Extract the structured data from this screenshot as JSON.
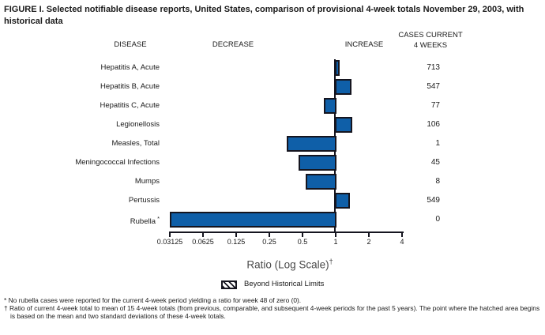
{
  "title": "FIGURE I. Selected notifiable disease reports, United States, comparison of provisional 4-week totals November 29, 2003, with historical data",
  "columns": {
    "disease": "DISEASE",
    "decrease": "DECREASE",
    "increase": "INCREASE",
    "cases_line1": "CASES CURRENT",
    "cases_line2": "4 WEEKS"
  },
  "chart_data": {
    "type": "bar",
    "orientation": "horizontal",
    "xscale": "log2",
    "xlabel": "Ratio (Log Scale)",
    "xlabel_superscript": "†",
    "xlim": [
      0.03125,
      4
    ],
    "baseline_ratio": 1,
    "axis_tick_labels": [
      "0.03125",
      "0.0625",
      "0.125",
      "0.25",
      "0.5",
      "1",
      "2",
      "4"
    ],
    "bar_color": "#0f5fa8",
    "bar_border_color": "#15151f",
    "rows": [
      {
        "disease": "Hepatitis A, Acute",
        "ratio": 1.08,
        "cases": "713",
        "beyond_historical_limits": false
      },
      {
        "disease": "Hepatitis B, Acute",
        "ratio": 1.39,
        "cases": "547",
        "beyond_historical_limits": false
      },
      {
        "disease": "Hepatitis C, Acute",
        "ratio": 0.78,
        "cases": "77",
        "beyond_historical_limits": false
      },
      {
        "disease": "Legionellosis",
        "ratio": 1.42,
        "cases": "106",
        "beyond_historical_limits": false
      },
      {
        "disease": "Measles, Total",
        "ratio": 0.36,
        "cases": "1",
        "beyond_historical_limits": false
      },
      {
        "disease": "Meningococcal Infections",
        "ratio": 0.46,
        "cases": "45",
        "beyond_historical_limits": false
      },
      {
        "disease": "Mumps",
        "ratio": 0.53,
        "cases": "8",
        "beyond_historical_limits": false
      },
      {
        "disease": "Pertussis",
        "ratio": 1.34,
        "cases": "549",
        "beyond_historical_limits": false
      },
      {
        "disease": "Rubella",
        "label_superscript": "*",
        "ratio": 0,
        "cases": "0",
        "beyond_historical_limits": false
      }
    ],
    "legend": {
      "swatch": "hatched",
      "label": "Beyond Historical Limits",
      "position": "below-axis"
    }
  },
  "footnotes": [
    {
      "marker": "*",
      "text": "No rubella cases were reported for the current 4-week period yielding a ratio for week 48 of zero (0)."
    },
    {
      "marker": "†",
      "text": "Ratio of current 4-week total to mean of 15 4-week totals (from previous, comparable, and subsequent 4-week periods for the past 5 years). The point where the hatched area begins is based on the mean and two standard deviations of these 4-week totals."
    }
  ]
}
